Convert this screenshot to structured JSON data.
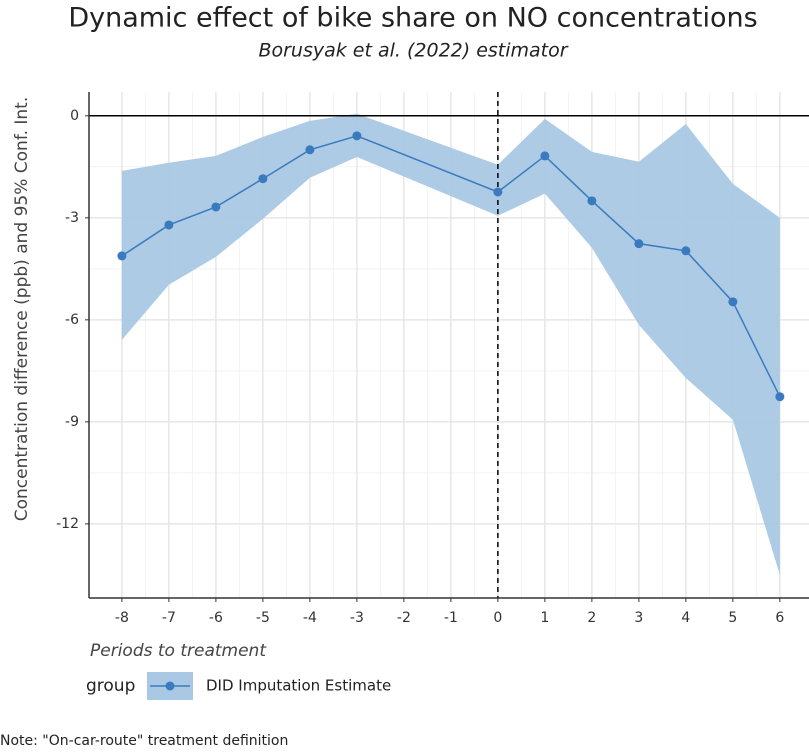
{
  "chart_data": {
    "type": "line",
    "title": "Dynamic effect of bike share on NO concentrations",
    "subtitle": "Borusyak et al. (2022) estimator",
    "x_label": "Periods to treatment",
    "y_label": "Concentration difference (ppb) and 95% Conf. Int.",
    "legend_title": "group",
    "note": "Note: \"On-car-route\" treatment definition",
    "x": [
      -8,
      -7,
      -6,
      -5,
      -4,
      -3,
      0,
      1,
      2,
      3,
      4,
      5,
      6
    ],
    "series": [
      {
        "name": "DID Imputation Estimate",
        "color": "#3a7bbf",
        "band_color": "#a9c8e3",
        "values": [
          -4.12,
          -3.21,
          -2.68,
          -1.85,
          -1.0,
          -0.59,
          -2.24,
          -1.18,
          -2.5,
          -3.76,
          -3.97,
          -5.47,
          -8.26
        ],
        "lower": [
          -6.59,
          -4.97,
          -4.15,
          -3.03,
          -1.82,
          -1.21,
          -2.94,
          -2.29,
          -3.88,
          -6.15,
          -7.71,
          -8.94,
          -13.5
        ],
        "upper": [
          -1.62,
          -1.38,
          -1.18,
          -0.62,
          -0.15,
          0.06,
          -1.44,
          -0.09,
          -1.06,
          -1.35,
          -0.24,
          -2.0,
          -3.0
        ]
      }
    ],
    "xlim": [
      -8.7,
      6.62
    ],
    "ylim": [
      -14.18,
      0.7
    ],
    "xticks": [
      -8,
      -7,
      -6,
      -5,
      -4,
      -3,
      -2,
      -1,
      0,
      1,
      2,
      3,
      4,
      5,
      6
    ],
    "yticks": [
      -12,
      -9,
      -6,
      -3,
      0
    ],
    "grid": true,
    "hline": 0,
    "vline": 0
  }
}
